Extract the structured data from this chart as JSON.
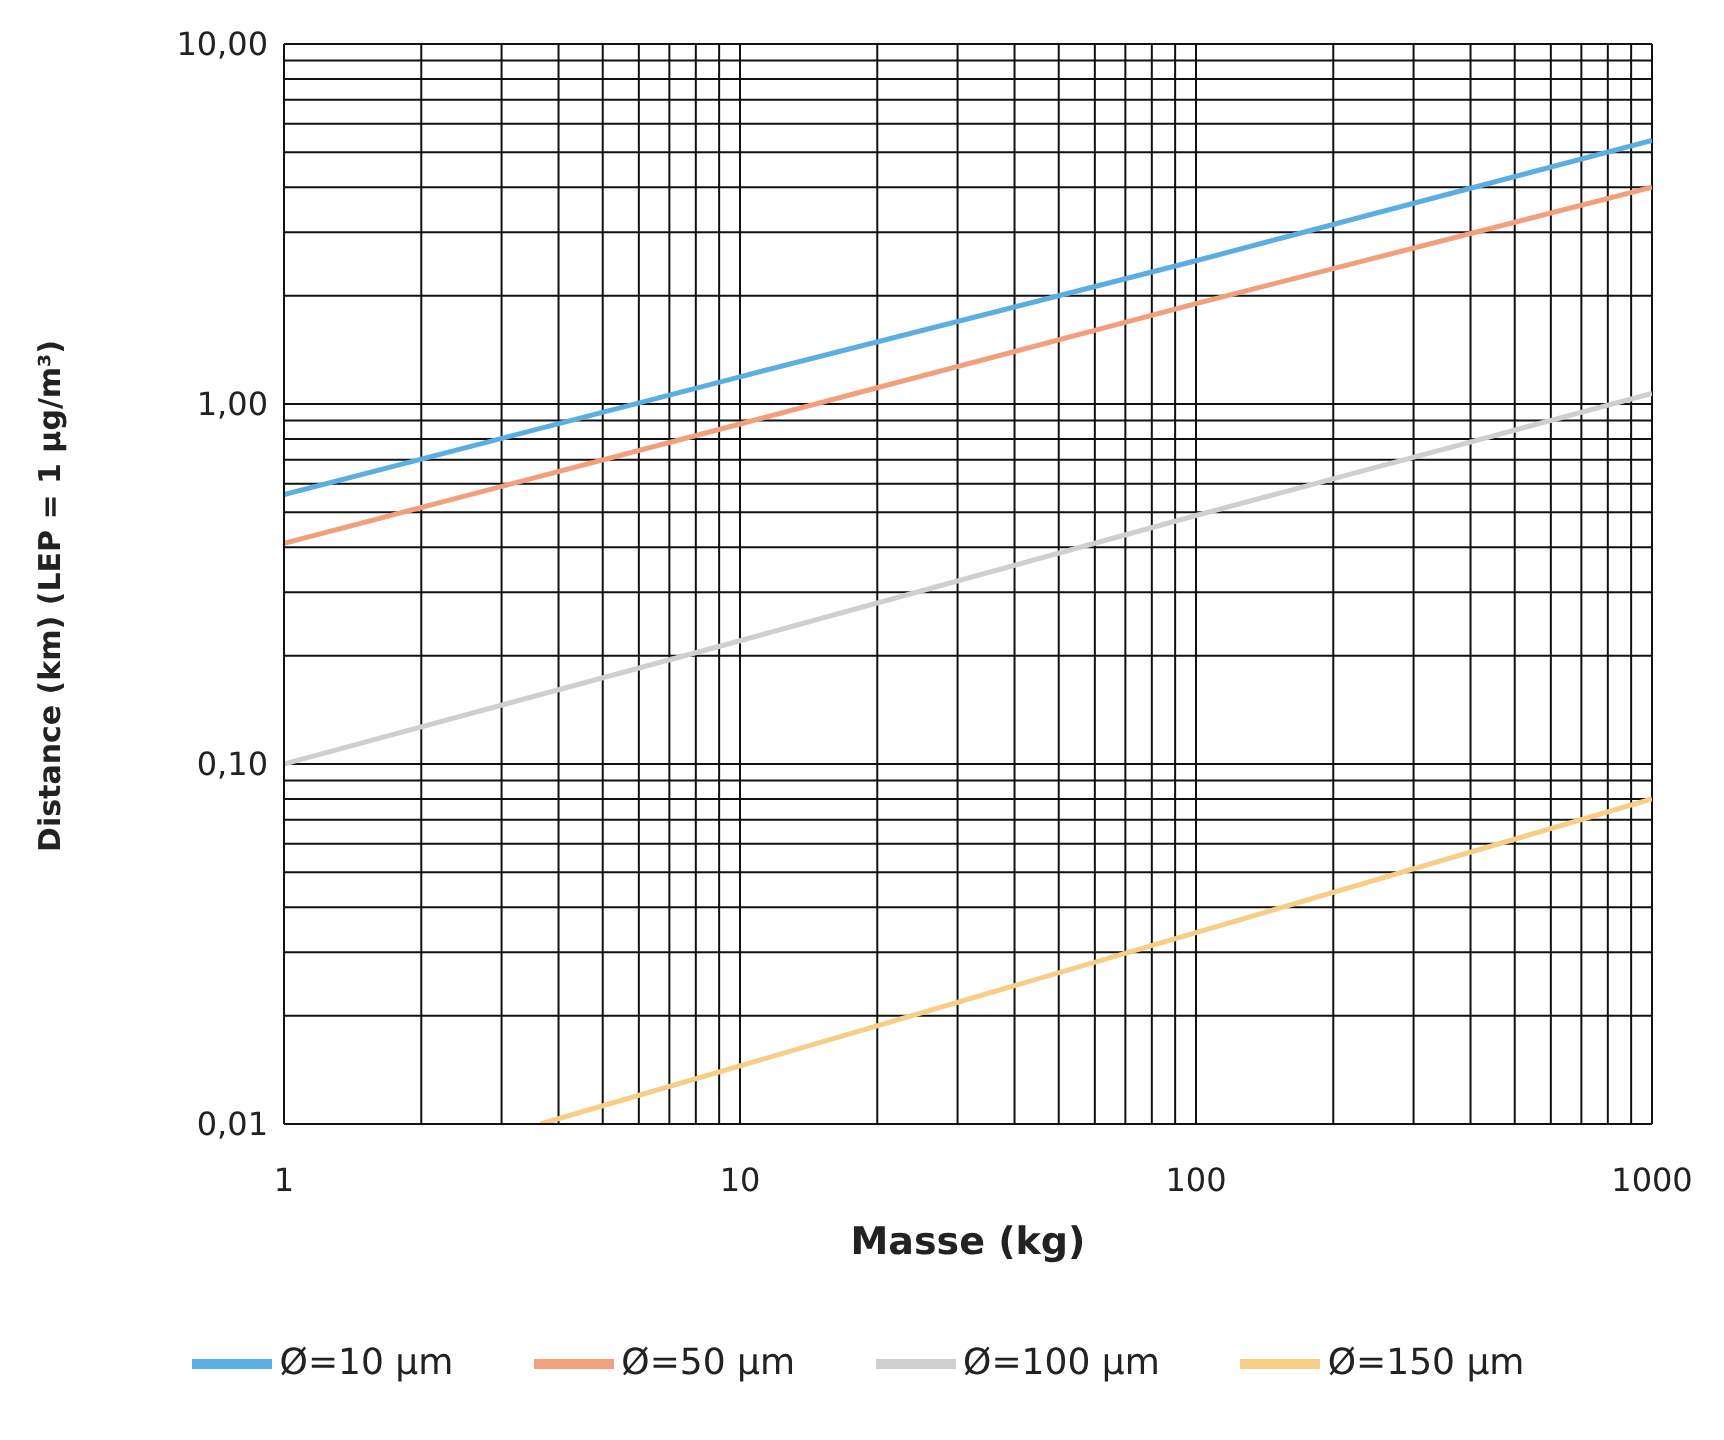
{
  "chart_data": {
    "type": "line",
    "xlabel": "Masse (kg)",
    "ylabel": "Distance (km) (LEP = 1 µg/m³)",
    "log": "xy",
    "grid": true,
    "legend": "bottom",
    "marker": "none",
    "line_style": "solid",
    "xlim": [
      1,
      1000
    ],
    "xticks": [
      1,
      {
        "value": 2,
        "label": null
      },
      {
        "value": 3,
        "label": null
      },
      {
        "value": 4,
        "label": null
      },
      {
        "value": 5,
        "label": null
      },
      {
        "value": 6,
        "label": null
      },
      {
        "value": 7,
        "label": null
      },
      {
        "value": 8,
        "label": null
      },
      {
        "value": 9,
        "label": null
      },
      10,
      {
        "value": 20,
        "label": null
      },
      {
        "value": 30,
        "label": null
      },
      {
        "value": 40,
        "label": null
      },
      {
        "value": 50,
        "label": null
      },
      {
        "value": 60,
        "label": null
      },
      {
        "value": 70,
        "label": null
      },
      {
        "value": 80,
        "label": null
      },
      {
        "value": 90,
        "label": null
      },
      100,
      {
        "value": 200,
        "label": null
      },
      {
        "value": 300,
        "label": null
      },
      {
        "value": 400,
        "label": null
      },
      {
        "value": 500,
        "label": null
      },
      {
        "value": 600,
        "label": null
      },
      {
        "value": 700,
        "label": null
      },
      {
        "value": 800,
        "label": null
      },
      {
        "value": 900,
        "label": null
      },
      1000
    ],
    "ylim": [
      0.01,
      10
    ],
    "yticks": [
      {
        "value": 0.01,
        "label": "0,01"
      },
      {
        "value": 0.02,
        "label": null
      },
      {
        "value": 0.03,
        "label": null
      },
      {
        "value": 0.04,
        "label": null
      },
      {
        "value": 0.05,
        "label": null
      },
      {
        "value": 0.06,
        "label": null
      },
      {
        "value": 0.07,
        "label": null
      },
      {
        "value": 0.08,
        "label": null
      },
      {
        "value": 0.09,
        "label": null
      },
      {
        "value": 0.1,
        "label": "0,10"
      },
      {
        "value": 0.2,
        "label": null
      },
      {
        "value": 0.3,
        "label": null
      },
      {
        "value": 0.4,
        "label": null
      },
      {
        "value": 0.5,
        "label": null
      },
      {
        "value": 0.6,
        "label": null
      },
      {
        "value": 0.7,
        "label": null
      },
      {
        "value": 0.8,
        "label": null
      },
      {
        "value": 0.9,
        "label": null
      },
      {
        "value": 1,
        "label": "1,00"
      },
      {
        "value": 2,
        "label": null
      },
      {
        "value": 3,
        "label": null
      },
      {
        "value": 4,
        "label": null
      },
      {
        "value": 5,
        "label": null
      },
      {
        "value": 6,
        "label": null
      },
      {
        "value": 7,
        "label": null
      },
      {
        "value": 8,
        "label": null
      },
      {
        "value": 9,
        "label": null
      },
      {
        "value": 10,
        "label": "10,00"
      }
    ],
    "series": [
      {
        "name": "Ø=10 µm",
        "color": "#5aaee0",
        "x": [
          1,
          10,
          100,
          1000
        ],
        "values": [
          0.56,
          1.19,
          2.5,
          5.4
        ]
      },
      {
        "name": "Ø=50 µm",
        "color": "#f0a07a",
        "x": [
          1,
          10,
          100,
          1000
        ],
        "values": [
          0.41,
          0.88,
          1.9,
          4.0
        ]
      },
      {
        "name": "Ø=100 µm",
        "color": "#cfcfcf",
        "x": [
          1,
          10,
          100,
          1000
        ],
        "values": [
          0.1,
          0.22,
          0.49,
          1.07
        ]
      },
      {
        "name": "Ø=150 µm",
        "color": "#f8cd85",
        "x": [
          3.65,
          10,
          100,
          1000
        ],
        "values": [
          0.01,
          0.0145,
          0.034,
          0.08
        ]
      }
    ]
  }
}
